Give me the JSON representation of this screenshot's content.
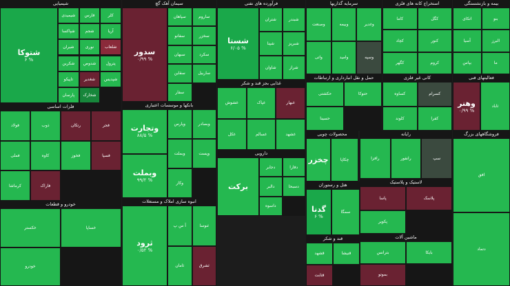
{
  "colors": {
    "strong_green": "#1aa84a",
    "green": "#25b850",
    "light_green": "#3ecb63",
    "dark_green": "#17863b",
    "grey": "#3b4a3f",
    "red": "#8a2a3a",
    "dark_red": "#6a2232"
  },
  "sectors": [
    {
      "id": "chemical",
      "title": "شیمیایی",
      "cells": [
        {
          "name": "شتوکا",
          "pct": "۶ %",
          "c": "strong_green",
          "big": true
        },
        {
          "name": "شیمیدی",
          "pct": "",
          "c": "green"
        },
        {
          "name": "فارس",
          "pct": "",
          "c": "green"
        },
        {
          "name": "کلر",
          "pct": "",
          "c": "green"
        },
        {
          "name": "شپاکسا",
          "pct": "",
          "c": "green"
        },
        {
          "name": "شجم",
          "pct": "",
          "c": "green"
        },
        {
          "name": "آریا",
          "pct": "",
          "c": "green"
        },
        {
          "name": "شیران",
          "pct": "",
          "c": "green"
        },
        {
          "name": "نوری",
          "pct": "",
          "c": "green"
        },
        {
          "name": "شلعاب",
          "pct": "",
          "c": "red"
        },
        {
          "name": "شکربن",
          "pct": "",
          "c": "green"
        },
        {
          "name": "شدوص",
          "pct": "",
          "c": "green"
        },
        {
          "name": "پترول",
          "pct": "",
          "c": "green"
        },
        {
          "name": "تاپیکو",
          "pct": "",
          "c": "green"
        },
        {
          "name": "شغدیر",
          "pct": "",
          "c": "dark_red"
        },
        {
          "name": "شپدیس",
          "pct": "",
          "c": "green"
        },
        {
          "name": "پارسان",
          "pct": "",
          "c": "green"
        },
        {
          "name": "شخارک",
          "pct": "",
          "c": "dark_green"
        }
      ]
    },
    {
      "id": "metals",
      "title": "فلزات اساسی",
      "cells": [
        {
          "name": "فولاد",
          "pct": "",
          "c": "green"
        },
        {
          "name": "ذوب",
          "pct": "",
          "c": "green"
        },
        {
          "name": "رتکان",
          "pct": "",
          "c": "dark_red"
        },
        {
          "name": "فجر",
          "pct": "",
          "c": "dark_red"
        },
        {
          "name": "فملی",
          "pct": "",
          "c": "green"
        },
        {
          "name": "کاوه",
          "pct": "",
          "c": "green"
        },
        {
          "name": "فخوز",
          "pct": "",
          "c": "green"
        },
        {
          "name": "فسپا",
          "pct": "",
          "c": "dark_red"
        },
        {
          "name": "کرماشا",
          "pct": "",
          "c": "green"
        },
        {
          "name": "فاراک",
          "pct": "",
          "c": "dark_red"
        }
      ]
    },
    {
      "id": "auto",
      "title": "خودرو و قطعات",
      "cells": [
        {
          "name": "خکستر",
          "pct": "",
          "c": "green"
        },
        {
          "name": "خساپا",
          "pct": "",
          "c": "green"
        },
        {
          "name": "خودرو",
          "pct": "",
          "c": "green"
        }
      ]
    },
    {
      "id": "iron",
      "title": "سیمان آهک گچ",
      "cells": [
        {
          "name": "سدور",
          "pct": "۰/۹۹ %",
          "c": "dark_red",
          "big": true
        },
        {
          "name": "سپاهان",
          "pct": "",
          "c": "green"
        },
        {
          "name": "ساروم",
          "pct": "",
          "c": "green"
        },
        {
          "name": "سفانو",
          "pct": "",
          "c": "green"
        },
        {
          "name": "سخزر",
          "pct": "",
          "c": "green"
        },
        {
          "name": "سبهان",
          "pct": "",
          "c": "green"
        },
        {
          "name": "سکرد",
          "pct": "",
          "c": "green"
        },
        {
          "name": "سقاین",
          "pct": "",
          "c": "green"
        },
        {
          "name": "ساربیل",
          "pct": "",
          "c": "green"
        },
        {
          "name": "سفار",
          "pct": "",
          "c": "green"
        }
      ]
    },
    {
      "id": "banks",
      "title": "بانکها و موسسات اعتباری",
      "cells": [
        {
          "name": "وتجارت",
          "pct": "۸۸/۵ %",
          "c": "green",
          "big": true
        },
        {
          "name": "وبملت",
          "pct": "۹۹/۲ %",
          "c": "green",
          "big": true
        },
        {
          "name": "وپارس",
          "pct": "",
          "c": "green"
        },
        {
          "name": "وبصادر",
          "pct": "",
          "c": "green"
        },
        {
          "name": "وبملت",
          "pct": "",
          "c": "green"
        },
        {
          "name": "وپست",
          "pct": "",
          "c": "green"
        },
        {
          "name": "وکار",
          "pct": "",
          "c": "green"
        }
      ]
    },
    {
      "id": "refining",
      "title": "فرآورده های نفتی",
      "cells": [
        {
          "name": "شستا",
          "pct": "۶/۰۵ %",
          "c": "strong_green",
          "big": true
        },
        {
          "name": "شتران",
          "pct": "",
          "c": "green"
        },
        {
          "name": "شبندر",
          "pct": "",
          "c": "green"
        },
        {
          "name": "شپنا",
          "pct": "",
          "c": "green"
        },
        {
          "name": "شبریز",
          "pct": "",
          "c": "green"
        },
        {
          "name": "شاوان",
          "pct": "",
          "c": "green"
        },
        {
          "name": "شراز",
          "pct": "",
          "c": "green"
        }
      ]
    },
    {
      "id": "investment",
      "title": "سرمایه گذاریها",
      "cells": [
        {
          "name": "وصنعت",
          "pct": "",
          "c": "green"
        },
        {
          "name": "وبیمه",
          "pct": "",
          "c": "green"
        },
        {
          "name": "وغدیر",
          "pct": "",
          "c": "green"
        },
        {
          "name": "واتی",
          "pct": "",
          "c": "green"
        },
        {
          "name": "وامید",
          "pct": "",
          "c": "green"
        },
        {
          "name": "وسپه",
          "pct": "",
          "c": "grey"
        }
      ]
    },
    {
      "id": "mining",
      "title": "استخراج کانه های فلزی",
      "cells": [
        {
          "name": "کاما",
          "pct": "",
          "c": "green"
        },
        {
          "name": "کگل",
          "pct": "",
          "c": "green"
        },
        {
          "name": "کچاد",
          "pct": "",
          "c": "green"
        },
        {
          "name": "کنور",
          "pct": "",
          "c": "green"
        },
        {
          "name": "کگهر",
          "pct": "",
          "c": "green"
        },
        {
          "name": "کروم",
          "pct": "",
          "c": "green"
        }
      ]
    },
    {
      "id": "insurance",
      "title": "بیمه و بازنشستگی",
      "cells": [
        {
          "name": "اتکای",
          "pct": "",
          "c": "green"
        },
        {
          "name": "بنو",
          "pct": "",
          "c": "green"
        },
        {
          "name": "آسیا",
          "pct": "",
          "c": "green"
        },
        {
          "name": "البرز",
          "pct": "",
          "c": "green"
        },
        {
          "name": "بپاس",
          "pct": "",
          "c": "green"
        },
        {
          "name": "ما",
          "pct": "",
          "c": "green"
        }
      ]
    },
    {
      "id": "food",
      "title": "غذایی بجز قند و شکر",
      "cells": [
        {
          "name": "غشوش",
          "pct": "",
          "c": "green"
        },
        {
          "name": "غپاک",
          "pct": "",
          "c": "green"
        },
        {
          "name": "غبهار",
          "pct": "",
          "c": "dark_red"
        },
        {
          "name": "غکل",
          "pct": "",
          "c": "green"
        },
        {
          "name": "غسالم",
          "pct": "",
          "c": "green"
        },
        {
          "name": "غشهد",
          "pct": "",
          "c": "green"
        }
      ]
    },
    {
      "id": "transport",
      "title": "حمل و نقل انبارداری و ارتباطات",
      "cells": [
        {
          "name": "حکشتی",
          "pct": "",
          "c": "green"
        },
        {
          "name": "حتوکا",
          "pct": "",
          "c": "green"
        },
        {
          "name": "حسینا",
          "pct": "",
          "c": "green"
        }
      ]
    },
    {
      "id": "nonmetal",
      "title": "کانی غیر فلزی",
      "cells": [
        {
          "name": "کساوه",
          "pct": "",
          "c": "green"
        },
        {
          "name": "کسرام",
          "pct": "",
          "c": "grey"
        },
        {
          "name": "کلوند",
          "pct": "",
          "c": "green"
        },
        {
          "name": "کفرا",
          "pct": "",
          "c": "green"
        }
      ]
    },
    {
      "id": "other",
      "title": "فعالیتهای فنی",
      "cells": [
        {
          "name": "وهنر",
          "pct": "۰/۹۹ %",
          "c": "dark_red",
          "big": true
        },
        {
          "name": "ثاباد",
          "pct": "",
          "c": "green"
        }
      ]
    },
    {
      "id": "pharma",
      "title": "دارویی",
      "cells": [
        {
          "name": "برکت",
          "pct": "",
          "c": "green",
          "big": true
        },
        {
          "name": "دجابر",
          "pct": "",
          "c": "green"
        },
        {
          "name": "دفارا",
          "pct": "",
          "c": "green"
        },
        {
          "name": "دالبر",
          "pct": "",
          "c": "green"
        },
        {
          "name": "دسبحا",
          "pct": "",
          "c": "green"
        },
        {
          "name": "داسوه",
          "pct": "",
          "c": "green"
        }
      ]
    },
    {
      "id": "oilprod",
      "title": "محصولات چوبی",
      "cells": [
        {
          "name": "چخزر",
          "pct": "",
          "c": "green",
          "big": true
        },
        {
          "name": "چکاپا",
          "pct": "",
          "c": "green"
        }
      ]
    },
    {
      "id": "computer",
      "title": "رایانه",
      "cells": [
        {
          "name": "رافزا",
          "pct": "",
          "c": "green"
        },
        {
          "name": "رانفور",
          "pct": "",
          "c": "green"
        },
        {
          "name": "سپ",
          "pct": "",
          "c": "grey"
        }
      ]
    },
    {
      "id": "electric",
      "title": "ماشین آلات",
      "cells": [
        {
          "name": "بترانس",
          "pct": "",
          "c": "green"
        },
        {
          "name": "بایکا",
          "pct": "",
          "c": "green"
        },
        {
          "name": "بموتو",
          "pct": "",
          "c": "dark_red"
        }
      ]
    },
    {
      "id": "hotel",
      "title": "هتل و رستوران",
      "cells": [
        {
          "name": "گدنا",
          "pct": "۶ %",
          "c": "strong_green",
          "big": true
        },
        {
          "name": "سمگا",
          "pct": "",
          "c": "green"
        }
      ]
    },
    {
      "id": "ceramic",
      "title": "لاستیک و پلاستیک",
      "cells": [
        {
          "name": "پاسا",
          "pct": "",
          "c": "dark_red"
        },
        {
          "name": "پلاسک",
          "pct": "",
          "c": "dark_red"
        },
        {
          "name": "پکویر",
          "pct": "",
          "c": "green"
        }
      ]
    },
    {
      "id": "sugar",
      "title": "قند و شکر",
      "cells": [
        {
          "name": "قشهد",
          "pct": "",
          "c": "green"
        },
        {
          "name": "قنیشا",
          "pct": "",
          "c": "green"
        },
        {
          "name": "قثابت",
          "pct": "",
          "c": "dark_red"
        }
      ]
    },
    {
      "id": "housing",
      "title": "انبوه سازی املاک و مستغلات",
      "cells": [
        {
          "name": "ثرود",
          "pct": "۰/۵۲ %",
          "c": "green",
          "big": true
        },
        {
          "name": "آ س پ",
          "pct": "",
          "c": "green"
        },
        {
          "name": "ثنوسا",
          "pct": "",
          "c": "green"
        },
        {
          "name": "ثامان",
          "pct": "",
          "c": "green"
        },
        {
          "name": "ثشرق",
          "pct": "",
          "c": "dark_red"
        }
      ]
    },
    {
      "id": "stores",
      "title": "فروشگاههای بزرگ",
      "cells": [
        {
          "name": "افق",
          "pct": "",
          "c": "green"
        },
        {
          "name": "دتماد",
          "pct": "",
          "c": "green"
        }
      ]
    }
  ]
}
